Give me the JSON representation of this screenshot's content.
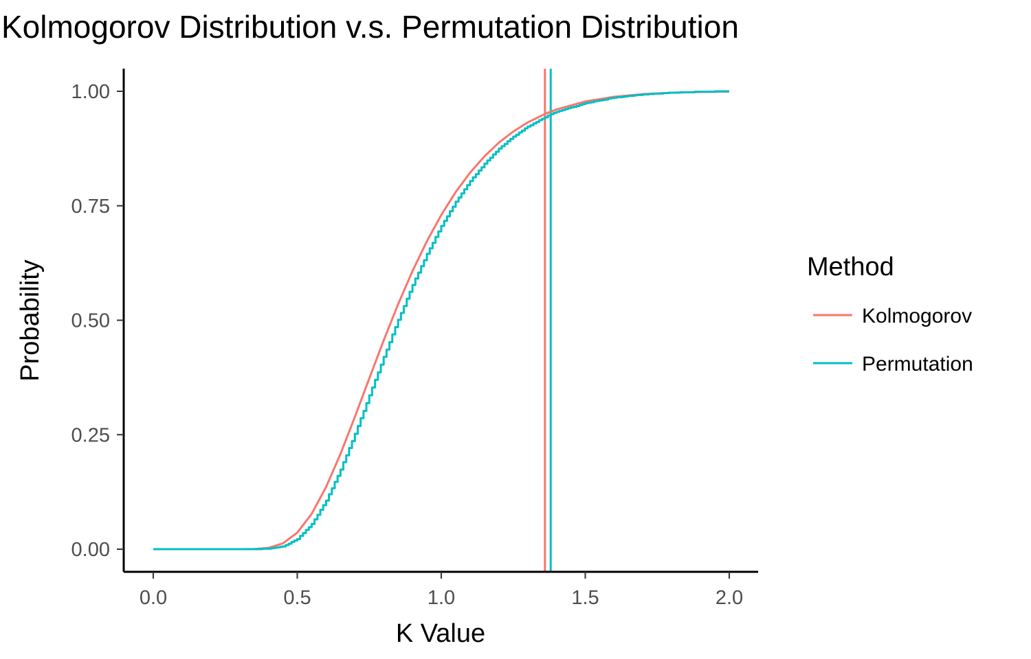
{
  "chart_data": {
    "type": "line",
    "title": "Kolmogorov Distribution v.s. Permutation Distribution",
    "xlabel": "K Value",
    "ylabel": "Probability",
    "xlim": [
      -0.1,
      2.1
    ],
    "ylim": [
      -0.05,
      1.05
    ],
    "x_ticks": [
      0.0,
      0.5,
      1.0,
      1.5,
      2.0
    ],
    "x_tick_labels": [
      "0.0",
      "0.5",
      "1.0",
      "1.5",
      "2.0"
    ],
    "y_ticks": [
      0.0,
      0.25,
      0.5,
      0.75,
      1.0
    ],
    "y_tick_labels": [
      "0.00",
      "0.25",
      "0.50",
      "0.75",
      "1.00"
    ],
    "grid": false,
    "legend": {
      "title": "Method",
      "placement": "right"
    },
    "series": [
      {
        "name": "Kolmogorov",
        "color": "#F8766D",
        "style": "smooth",
        "x": [
          0.0,
          0.3,
          0.35,
          0.4,
          0.45,
          0.5,
          0.55,
          0.6,
          0.65,
          0.7,
          0.75,
          0.8,
          0.85,
          0.9,
          0.95,
          1.0,
          1.05,
          1.1,
          1.15,
          1.2,
          1.25,
          1.3,
          1.36,
          1.4,
          1.5,
          1.6,
          1.7,
          1.8,
          1.9,
          2.0
        ],
        "y": [
          0.0,
          0.0,
          0.0003,
          0.0028,
          0.0126,
          0.0361,
          0.0772,
          0.1357,
          0.208,
          0.2888,
          0.3728,
          0.4559,
          0.5347,
          0.6073,
          0.6725,
          0.73,
          0.7798,
          0.8223,
          0.858,
          0.8878,
          0.9121,
          0.9319,
          0.9505,
          0.9603,
          0.9778,
          0.988,
          0.9938,
          0.9969,
          0.9985,
          0.9993
        ],
        "vline": 1.36
      },
      {
        "name": "Permutation",
        "color": "#00BFC4",
        "style": "step",
        "x": [
          0.0,
          0.3,
          0.35,
          0.4,
          0.45,
          0.5,
          0.55,
          0.6,
          0.65,
          0.7,
          0.75,
          0.8,
          0.85,
          0.9,
          0.95,
          1.0,
          1.05,
          1.1,
          1.15,
          1.2,
          1.25,
          1.3,
          1.38,
          1.4,
          1.5,
          1.6,
          1.7,
          1.8,
          1.9,
          2.0
        ],
        "y": [
          0.0,
          0.0,
          0.0,
          0.001,
          0.006,
          0.022,
          0.055,
          0.106,
          0.174,
          0.252,
          0.336,
          0.42,
          0.501,
          0.577,
          0.645,
          0.706,
          0.759,
          0.804,
          0.842,
          0.875,
          0.901,
          0.923,
          0.95,
          0.955,
          0.974,
          0.986,
          0.993,
          0.997,
          0.999,
          1.0
        ],
        "vline": 1.38
      }
    ]
  }
}
